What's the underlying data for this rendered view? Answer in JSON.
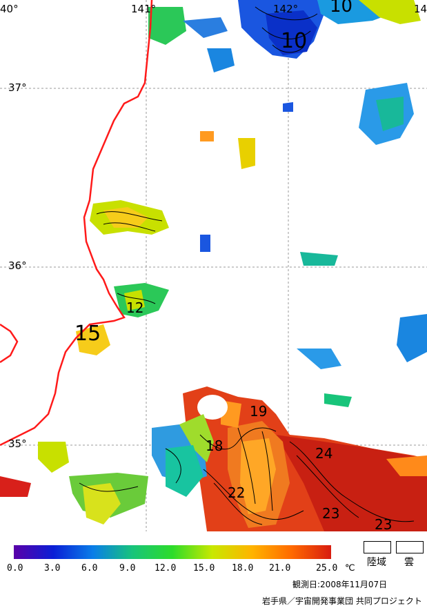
{
  "map": {
    "lon_labels": [
      "40°",
      "141°",
      "142°",
      "14"
    ],
    "lat_labels": [
      "37°",
      "36°",
      "35°"
    ],
    "contour_labels": [
      "10",
      "10",
      "12",
      "15",
      "18",
      "19",
      "22",
      "24",
      "23",
      "23"
    ]
  },
  "legend": {
    "ticks": [
      "0.0",
      "3.0",
      "6.0",
      "9.0",
      "12.0",
      "15.0",
      "18.0",
      "21.0",
      "25.0"
    ],
    "unit": "℃",
    "land_label": "陸域",
    "cloud_label": "雲",
    "colors": [
      "#5a00a8",
      "#0a1fd6",
      "#0a7ee8",
      "#18c47a",
      "#2ddc2a",
      "#c8e800",
      "#ffb400",
      "#ff6a00",
      "#d81c10"
    ]
  },
  "footer": {
    "observation": "観測日:2008年11月07日",
    "credit": "岩手県／宇宙開発事業団 共同プロジェクト"
  }
}
